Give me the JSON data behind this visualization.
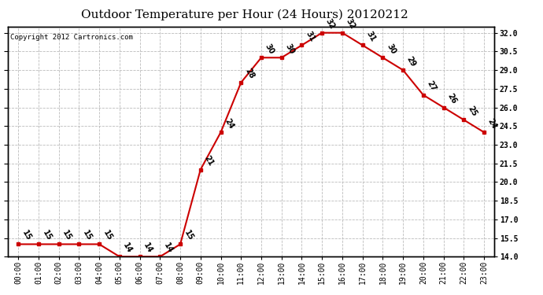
{
  "title": "Outdoor Temperature per Hour (24 Hours) 20120212",
  "copyright_text": "Copyright 2012 Cartronics.com",
  "hours": [
    "00:00",
    "01:00",
    "02:00",
    "03:00",
    "04:00",
    "05:00",
    "06:00",
    "07:00",
    "08:00",
    "09:00",
    "10:00",
    "11:00",
    "12:00",
    "13:00",
    "14:00",
    "15:00",
    "16:00",
    "17:00",
    "18:00",
    "19:00",
    "20:00",
    "21:00",
    "22:00",
    "23:00"
  ],
  "temps": [
    15,
    15,
    15,
    15,
    15,
    14,
    14,
    14,
    15,
    21,
    24,
    28,
    30,
    30,
    31,
    32,
    32,
    31,
    30,
    29,
    27,
    26,
    25,
    24
  ],
  "ylim_min": 14.0,
  "ylim_max": 32.5,
  "line_color": "#cc0000",
  "marker_color": "#cc0000",
  "bg_color": "#ffffff",
  "grid_color": "#bbbbbb",
  "title_fontsize": 11,
  "tick_fontsize": 7,
  "annot_fontsize": 7,
  "copyright_fontsize": 6.5,
  "y_ticks": [
    14.0,
    15.5,
    17.0,
    18.5,
    20.0,
    21.5,
    23.0,
    24.5,
    26.0,
    27.5,
    29.0,
    30.5,
    32.0
  ]
}
